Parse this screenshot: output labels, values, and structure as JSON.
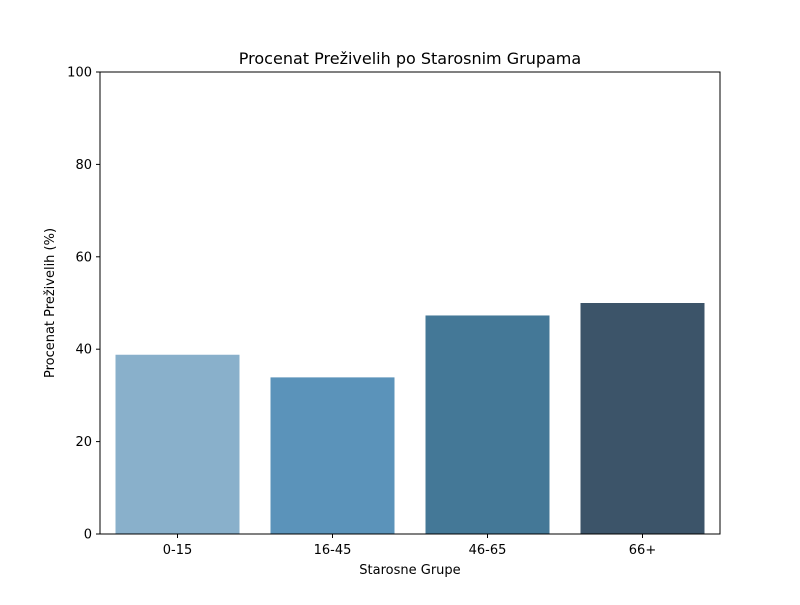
{
  "chart_data": {
    "type": "bar",
    "title": "Procenat Preživelih po Starosnim Grupama",
    "xlabel": "Starosne Grupe",
    "ylabel": "Procenat Preživelih (%)",
    "ylim": [
      0,
      100
    ],
    "yticks": [
      0,
      20,
      40,
      60,
      80,
      100
    ],
    "grid": false,
    "categories": [
      "0-15",
      "16-45",
      "46-65",
      "66+"
    ],
    "values": [
      38.8,
      33.9,
      47.3,
      50.0
    ],
    "colors": [
      "#89b0cb",
      "#5b93ba",
      "#447897",
      "#3c5469"
    ]
  }
}
